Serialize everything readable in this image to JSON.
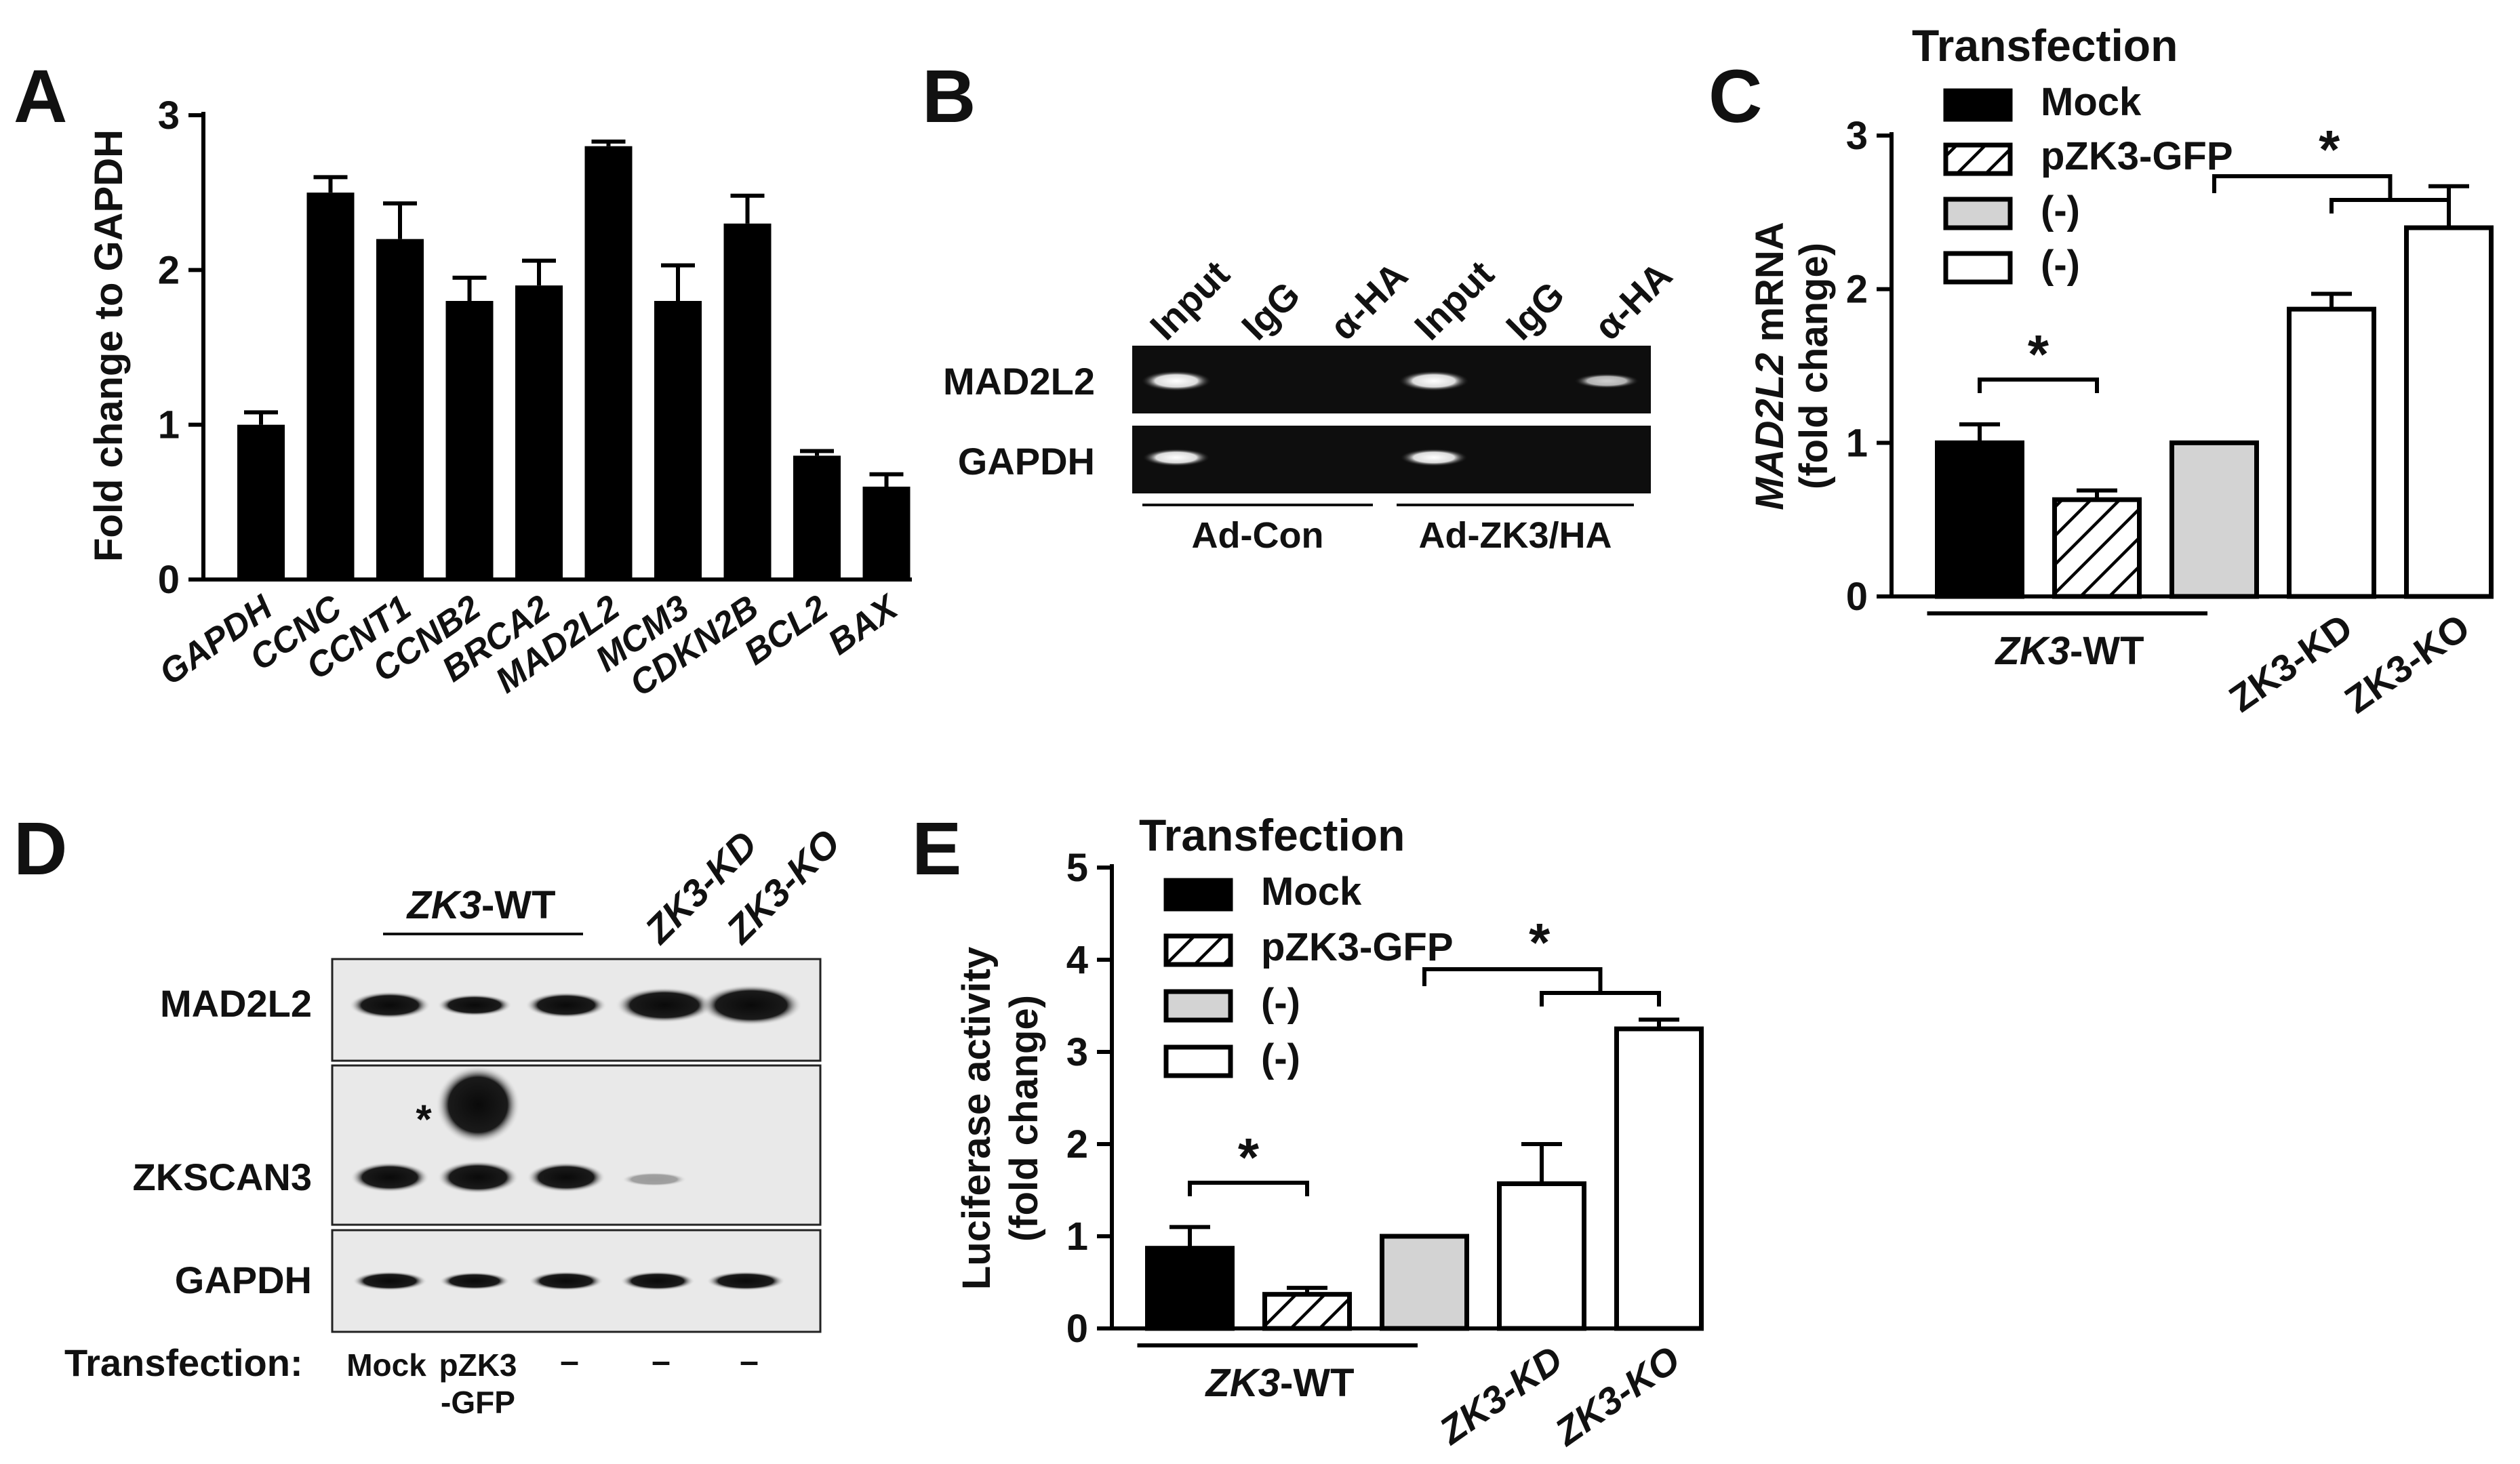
{
  "panels": {
    "A": "A",
    "B": "B",
    "C": "C",
    "D": "D",
    "E": "E"
  },
  "chart_data": [
    {
      "panel": "A",
      "type": "bar",
      "ylabel": "Fold change to GAPDH",
      "ylim": [
        0,
        3
      ],
      "yticks": [
        "0",
        "1",
        "2",
        "3"
      ],
      "categories": [
        "GAPDH",
        "CCNC",
        "CCNT1",
        "CCNB2",
        "BRCA2",
        "MAD2L2",
        "MCM3",
        "CDKN2B",
        "BCL2",
        "BAX"
      ],
      "values": [
        1.0,
        2.5,
        2.2,
        1.8,
        1.9,
        2.8,
        1.8,
        2.3,
        0.8,
        0.6
      ],
      "errors": [
        0.08,
        0.1,
        0.23,
        0.15,
        0.16,
        0.03,
        0.23,
        0.18,
        0.03,
        0.08
      ],
      "bar_color": "#000000"
    },
    {
      "panel": "C",
      "type": "bar",
      "ylabel_italic": "MAD2L2",
      "ylabel_rest": " mRNA",
      "ylabel2": "(fold change)",
      "ylim": [
        0,
        3
      ],
      "yticks": [
        "0",
        "1",
        "2",
        "3"
      ],
      "legend_title": "Transfection",
      "legend": [
        "Mock",
        "pZK3-GFP",
        "(-)",
        "(-)"
      ],
      "values": [
        1.0,
        0.63,
        1.0,
        1.87,
        2.4
      ],
      "errors": [
        0.12,
        0.06,
        0.0,
        0.1,
        0.27
      ],
      "styles": [
        "black",
        "hatch",
        "gray",
        "white",
        "white"
      ],
      "group_label_italic": "ZK3",
      "group_label_rest": "-WT",
      "xlabels": [
        "ZK3-KD",
        "ZK3-KO"
      ],
      "sig": "*"
    },
    {
      "panel": "E",
      "type": "bar",
      "ylabel": "Luciferase activity",
      "ylabel2": "(fold change)",
      "ylim": [
        0,
        5
      ],
      "yticks": [
        "0",
        "1",
        "2",
        "3",
        "4",
        "5"
      ],
      "legend_title": "Transfection",
      "legend": [
        "Mock",
        "pZK3-GFP",
        "(-)",
        "(-)"
      ],
      "values": [
        0.87,
        0.37,
        1.0,
        1.57,
        3.25
      ],
      "errors": [
        0.23,
        0.07,
        0.0,
        0.43,
        0.1
      ],
      "styles": [
        "black",
        "hatch",
        "gray",
        "white",
        "white"
      ],
      "group_label_italic": "ZK3",
      "group_label_rest": "-WT",
      "xlabels": [
        "ZK3-KD",
        "ZK3-KO"
      ],
      "sig": "*"
    }
  ],
  "gel_B": {
    "lanes": [
      "Input",
      "IgG",
      "α-HA",
      "Input",
      "IgG",
      "α-HA"
    ],
    "rows": [
      "MAD2L2",
      "GAPDH"
    ],
    "groups": [
      "Ad-Con",
      "Ad-ZK3/HA"
    ]
  },
  "blot_D": {
    "header_italic": "ZK3",
    "header_rest": "-WT",
    "header_kd": "ZK3-KD",
    "header_ko": "ZK3-KO",
    "rows": [
      "MAD2L2",
      "ZKSCAN3",
      "GAPDH"
    ],
    "star": "*",
    "transfection_label": "Transfection:",
    "lane_labels": [
      "Mock",
      "pZK3",
      "-GFP",
      "–",
      "–",
      "–"
    ]
  }
}
